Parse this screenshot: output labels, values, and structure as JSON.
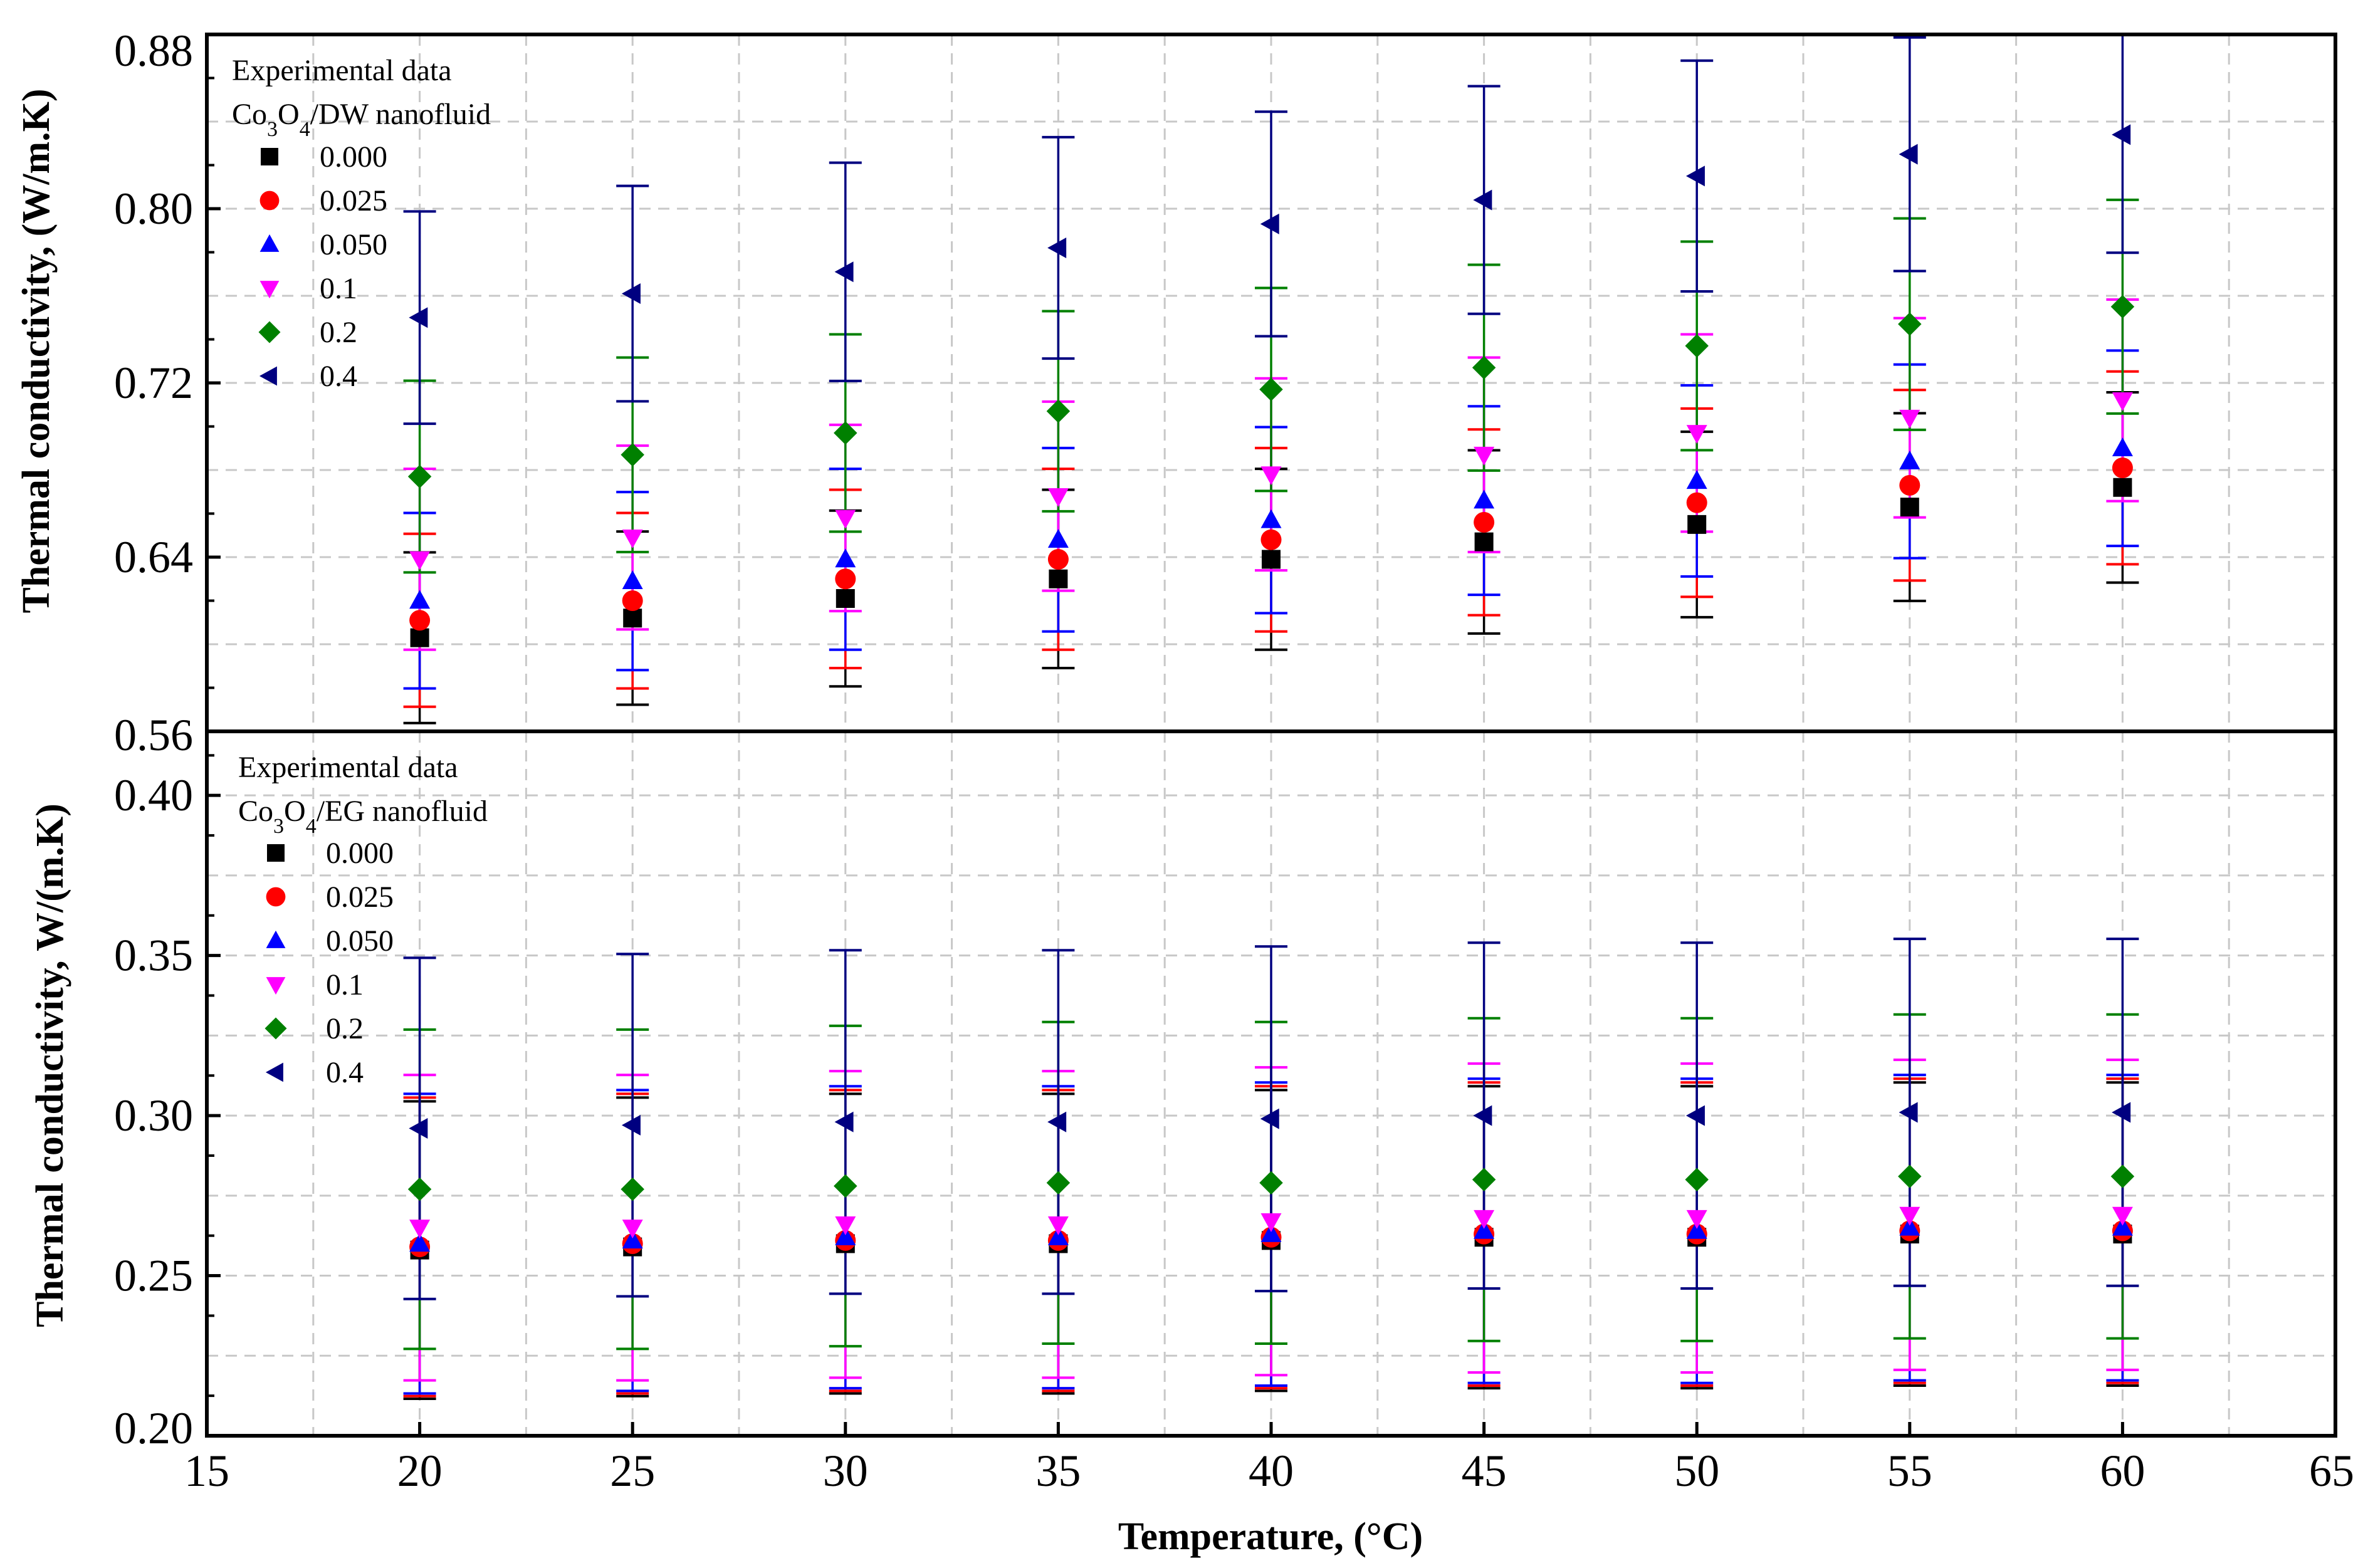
{
  "chart_data": [
    {
      "type": "scatter",
      "panel": "top",
      "ylabel": "Thermal conductivity, (W/m.K)",
      "xlim": [
        15,
        65
      ],
      "ylim": [
        0.56,
        0.88
      ],
      "yticks": [
        "0.56",
        "0.64",
        "0.72",
        "0.80",
        "0.88"
      ],
      "grid": true,
      "legend_placement": "top-left",
      "legend_title": "Experimental data",
      "legend_subtitle": {
        "pre": "Co",
        "sub1": "3",
        "mid": "O",
        "sub2": "4",
        "post": "/DW nanofluid"
      },
      "x": [
        20,
        25,
        30,
        35,
        40,
        45,
        50,
        55,
        60
      ],
      "error_fraction": 0.065,
      "series": [
        {
          "name": "0.000",
          "marker": "square",
          "color": "#000000",
          "values": [
            0.603,
            0.612,
            0.621,
            0.63,
            0.639,
            0.647,
            0.655,
            0.663,
            0.672
          ]
        },
        {
          "name": "0.025",
          "marker": "circle",
          "color": "#ff0000",
          "values": [
            0.611,
            0.62,
            0.63,
            0.639,
            0.648,
            0.656,
            0.665,
            0.673,
            0.681
          ]
        },
        {
          "name": "0.050",
          "marker": "triangle-up",
          "color": "#0000ff",
          "values": [
            0.62,
            0.629,
            0.639,
            0.648,
            0.657,
            0.666,
            0.675,
            0.684,
            0.69
          ]
        },
        {
          "name": "0.1",
          "marker": "triangle-down",
          "color": "#ff00ff",
          "values": [
            0.639,
            0.649,
            0.658,
            0.668,
            0.678,
            0.687,
            0.697,
            0.704,
            0.712
          ]
        },
        {
          "name": "0.2",
          "marker": "diamond",
          "color": "#008000",
          "values": [
            0.677,
            0.687,
            0.697,
            0.707,
            0.717,
            0.727,
            0.737,
            0.747,
            0.755
          ]
        },
        {
          "name": "0.4",
          "marker": "triangle-left",
          "color": "#000080",
          "values": [
            0.75,
            0.761,
            0.771,
            0.782,
            0.793,
            0.804,
            0.815,
            0.825,
            0.834
          ]
        }
      ]
    },
    {
      "type": "scatter",
      "panel": "bottom",
      "xlabel": "Temperature, (°C)",
      "ylabel": "Thermal conductivity, W/(m.K)",
      "xlim": [
        15,
        65
      ],
      "ylim": [
        0.2,
        0.42
      ],
      "xticks": [
        "15",
        "20",
        "25",
        "30",
        "35",
        "40",
        "45",
        "50",
        "55",
        "60",
        "65"
      ],
      "yticks": [
        "0.20",
        "0.25",
        "0.30",
        "0.35",
        "0.40"
      ],
      "grid": true,
      "legend_placement": "top-left",
      "legend_title": "Experimental data",
      "legend_subtitle": {
        "pre": "Co",
        "sub1": "3",
        "mid": "O",
        "sub2": "4",
        "post": "/EG nanofluid"
      },
      "x": [
        20,
        25,
        30,
        35,
        40,
        45,
        50,
        55,
        60
      ],
      "error_fraction": 0.18,
      "series": [
        {
          "name": "0.000",
          "marker": "square",
          "color": "#000000",
          "values": [
            0.258,
            0.259,
            0.26,
            0.26,
            0.261,
            0.262,
            0.262,
            0.263,
            0.263
          ]
        },
        {
          "name": "0.025",
          "marker": "circle",
          "color": "#ff0000",
          "values": [
            0.259,
            0.26,
            0.261,
            0.261,
            0.262,
            0.263,
            0.263,
            0.264,
            0.264
          ]
        },
        {
          "name": "0.050",
          "marker": "triangle-up",
          "color": "#0000ff",
          "values": [
            0.26,
            0.261,
            0.262,
            0.262,
            0.263,
            0.264,
            0.264,
            0.265,
            0.265
          ]
        },
        {
          "name": "0.1",
          "marker": "triangle-down",
          "color": "#ff00ff",
          "values": [
            0.265,
            0.265,
            0.266,
            0.266,
            0.267,
            0.268,
            0.268,
            0.269,
            0.269
          ]
        },
        {
          "name": "0.2",
          "marker": "diamond",
          "color": "#008000",
          "values": [
            0.277,
            0.277,
            0.278,
            0.279,
            0.279,
            0.28,
            0.28,
            0.281,
            0.281
          ]
        },
        {
          "name": "0.4",
          "marker": "triangle-left",
          "color": "#000080",
          "values": [
            0.296,
            0.297,
            0.298,
            0.298,
            0.299,
            0.3,
            0.3,
            0.301,
            0.301
          ]
        }
      ]
    }
  ]
}
